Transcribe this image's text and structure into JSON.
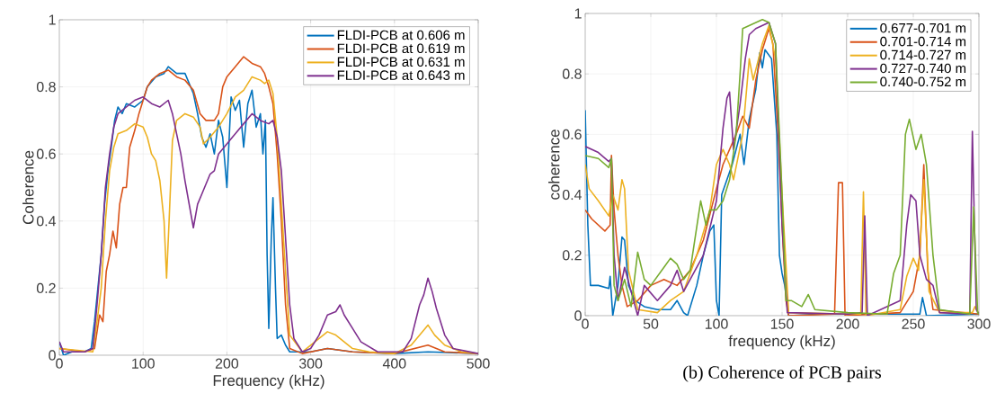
{
  "chart_data": [
    {
      "type": "line",
      "xlabel": "Frequency (kHz)",
      "ylabel": "Coherence",
      "xlim": [
        0,
        500
      ],
      "ylim": [
        0,
        1
      ],
      "xticks": [
        0,
        100,
        200,
        300,
        400,
        500
      ],
      "yticks": [
        0,
        0.2,
        0.4,
        0.6,
        0.8,
        1
      ],
      "grid": true,
      "legend": "top right",
      "series": [
        {
          "name": "FLDI-PCB at 0.606 m",
          "color": "#0072bd",
          "x": [
            0,
            5,
            15,
            30,
            38,
            42,
            46,
            50,
            54,
            58,
            62,
            66,
            70,
            75,
            80,
            90,
            100,
            105,
            115,
            125,
            130,
            140,
            150,
            160,
            165,
            170,
            175,
            180,
            185,
            190,
            195,
            200,
            205,
            210,
            215,
            220,
            225,
            230,
            235,
            240,
            243,
            246,
            248,
            250,
            253,
            255,
            258,
            260,
            265,
            270,
            275,
            300,
            320,
            350,
            400,
            440,
            500
          ],
          "values": [
            0.04,
            0,
            0.01,
            0.01,
            0.02,
            0.1,
            0.2,
            0.3,
            0.45,
            0.55,
            0.62,
            0.7,
            0.74,
            0.72,
            0.75,
            0.74,
            0.76,
            0.8,
            0.83,
            0.84,
            0.86,
            0.84,
            0.84,
            0.78,
            0.72,
            0.65,
            0.62,
            0.66,
            0.6,
            0.7,
            0.65,
            0.5,
            0.77,
            0.73,
            0.76,
            0.62,
            0.75,
            0.79,
            0.68,
            0.72,
            0.6,
            0.7,
            0.3,
            0.08,
            0.35,
            0.47,
            0.2,
            0.05,
            0.06,
            0.03,
            0.01,
            0.01,
            0.02,
            0.01,
            0.005,
            0.01,
            0.005
          ]
        },
        {
          "name": "FLDI-PCB at 0.619 m",
          "color": "#d95319",
          "x": [
            0,
            30,
            42,
            48,
            52,
            56,
            60,
            64,
            68,
            72,
            76,
            80,
            84,
            90,
            95,
            100,
            105,
            110,
            120,
            130,
            140,
            150,
            160,
            168,
            175,
            185,
            190,
            195,
            200,
            210,
            220,
            230,
            240,
            245,
            250,
            255,
            260,
            265,
            270,
            275,
            290,
            320,
            350,
            400,
            440,
            460,
            500
          ],
          "values": [
            0.02,
            0.01,
            0.02,
            0.12,
            0.1,
            0.25,
            0.3,
            0.37,
            0.32,
            0.45,
            0.5,
            0.5,
            0.62,
            0.67,
            0.72,
            0.76,
            0.8,
            0.82,
            0.84,
            0.85,
            0.83,
            0.82,
            0.79,
            0.72,
            0.7,
            0.7,
            0.72,
            0.8,
            0.83,
            0.86,
            0.89,
            0.87,
            0.86,
            0.84,
            0.8,
            0.75,
            0.6,
            0.4,
            0.15,
            0.02,
            0.005,
            0.02,
            0.01,
            0.005,
            0.03,
            0.01,
            0.005
          ]
        },
        {
          "name": "FLDI-PCB at 0.631 m",
          "color": "#edb120",
          "x": [
            0,
            40,
            45,
            50,
            55,
            60,
            65,
            70,
            80,
            90,
            100,
            105,
            110,
            115,
            120,
            125,
            128,
            131,
            135,
            140,
            150,
            160,
            168,
            172,
            180,
            190,
            195,
            200,
            210,
            220,
            230,
            240,
            245,
            250,
            255,
            260,
            265,
            270,
            275,
            290,
            310,
            320,
            330,
            340,
            350,
            370,
            400,
            420,
            430,
            440,
            448,
            460,
            480,
            500
          ],
          "values": [
            0.02,
            0.01,
            0.1,
            0.2,
            0.4,
            0.55,
            0.62,
            0.66,
            0.67,
            0.69,
            0.68,
            0.65,
            0.6,
            0.58,
            0.52,
            0.4,
            0.23,
            0.4,
            0.64,
            0.7,
            0.72,
            0.71,
            0.68,
            0.63,
            0.65,
            0.68,
            0.7,
            0.72,
            0.77,
            0.79,
            0.83,
            0.82,
            0.81,
            0.82,
            0.78,
            0.65,
            0.45,
            0.25,
            0.06,
            0.01,
            0.05,
            0.07,
            0.06,
            0.04,
            0.02,
            0.01,
            0.005,
            0.03,
            0.06,
            0.09,
            0.06,
            0.03,
            0.01,
            0.005
          ]
        },
        {
          "name": "FLDI-PCB at 0.643 m",
          "color": "#7e2f8e",
          "x": [
            0,
            5,
            30,
            40,
            45,
            50,
            55,
            60,
            65,
            70,
            80,
            90,
            100,
            110,
            120,
            130,
            135,
            140,
            145,
            150,
            155,
            160,
            165,
            170,
            180,
            185,
            190,
            200,
            210,
            220,
            230,
            240,
            250,
            255,
            260,
            265,
            270,
            275,
            280,
            290,
            300,
            310,
            320,
            330,
            335,
            340,
            350,
            360,
            380,
            410,
            420,
            430,
            435,
            440,
            445,
            450,
            460,
            470,
            500
          ],
          "values": [
            0.04,
            0.01,
            0.01,
            0.02,
            0.15,
            0.3,
            0.5,
            0.6,
            0.68,
            0.72,
            0.74,
            0.76,
            0.77,
            0.75,
            0.74,
            0.76,
            0.72,
            0.66,
            0.6,
            0.52,
            0.45,
            0.38,
            0.45,
            0.48,
            0.54,
            0.55,
            0.6,
            0.63,
            0.66,
            0.69,
            0.72,
            0.7,
            0.69,
            0.7,
            0.65,
            0.55,
            0.35,
            0.15,
            0.05,
            0.01,
            0.02,
            0.06,
            0.12,
            0.13,
            0.15,
            0.12,
            0.08,
            0.04,
            0.01,
            0.01,
            0.05,
            0.15,
            0.18,
            0.23,
            0.19,
            0.14,
            0.06,
            0.02,
            0.005
          ]
        }
      ]
    },
    {
      "type": "line",
      "xlabel": "frequency (kHz)",
      "ylabel": "coherence",
      "xlim": [
        0,
        300
      ],
      "ylim": [
        0,
        1
      ],
      "xticks": [
        0,
        50,
        100,
        150,
        200,
        250,
        300
      ],
      "yticks": [
        0,
        0.2,
        0.4,
        0.6,
        0.8,
        1
      ],
      "grid": true,
      "legend": "top right",
      "annotations": [
        "(b) Coherence of PCB pairs"
      ],
      "series": [
        {
          "name": "0.677-0.701 m",
          "color": "#0072bd",
          "x": [
            0,
            2,
            4,
            10,
            18,
            19,
            21,
            25,
            28,
            30,
            33,
            38,
            45,
            55,
            65,
            70,
            75,
            78,
            85,
            90,
            95,
            98,
            100,
            102,
            104,
            108,
            112,
            118,
            121,
            125,
            130,
            133,
            135,
            137,
            142,
            146,
            148,
            150,
            152,
            155,
            180,
            255,
            257,
            260,
            300
          ],
          "values": [
            0.68,
            0.3,
            0.1,
            0.1,
            0.09,
            0.13,
            0,
            0.1,
            0.26,
            0.25,
            0.1,
            0.05,
            0.03,
            0.02,
            0.02,
            0.05,
            0.01,
            0,
            0.1,
            0.2,
            0.28,
            0.3,
            0.05,
            0,
            0.4,
            0.45,
            0.5,
            0.6,
            0.5,
            0.65,
            0.75,
            0.87,
            0.82,
            0.88,
            0.85,
            0.6,
            0.2,
            0.14,
            0.1,
            0,
            0.005,
            0.005,
            0.06,
            0,
            0.005
          ]
        },
        {
          "name": "0.701-0.714 m",
          "color": "#d95319",
          "x": [
            0,
            5,
            15,
            19,
            20,
            22,
            25,
            28,
            32,
            40,
            50,
            60,
            70,
            80,
            90,
            100,
            105,
            110,
            115,
            120,
            125,
            130,
            135,
            140,
            143,
            147,
            150,
            153,
            155,
            190,
            193,
            196,
            198,
            240,
            250,
            255,
            258,
            261,
            265,
            300
          ],
          "values": [
            0.35,
            0.32,
            0.28,
            0.3,
            0.53,
            0.35,
            0.2,
            0.1,
            0.03,
            0.05,
            0.1,
            0.12,
            0.1,
            0.15,
            0.25,
            0.42,
            0.5,
            0.55,
            0.6,
            0.66,
            0.62,
            0.78,
            0.88,
            0.95,
            0.9,
            0.6,
            0.3,
            0.05,
            0,
            0.005,
            0.44,
            0.44,
            0,
            0.01,
            0.08,
            0.2,
            0.5,
            0.15,
            0.02,
            0.005
          ]
        },
        {
          "name": "0.714-0.727 m",
          "color": "#edb120",
          "x": [
            0,
            3,
            10,
            18,
            21,
            25,
            28,
            30,
            33,
            40,
            55,
            65,
            75,
            85,
            95,
            100,
            105,
            110,
            113,
            120,
            125,
            128,
            135,
            140,
            145,
            150,
            155,
            200,
            210,
            212,
            214,
            240,
            245,
            250,
            254,
            258,
            262,
            270,
            295,
            297,
            300
          ],
          "values": [
            0.5,
            0.42,
            0.38,
            0.33,
            0.4,
            0.35,
            0.45,
            0.42,
            0.15,
            0.02,
            0.01,
            0.05,
            0.08,
            0.2,
            0.35,
            0.5,
            0.55,
            0.5,
            0.45,
            0.6,
            0.85,
            0.78,
            0.9,
            0.96,
            0.85,
            0.4,
            0.01,
            0.005,
            0.005,
            0.41,
            0,
            0.02,
            0.13,
            0.19,
            0.15,
            0.45,
            0.08,
            0.01,
            0.01,
            0.03,
            0.005
          ]
        },
        {
          "name": "0.727-0.740 m",
          "color": "#7e2f8e",
          "x": [
            0,
            10,
            18,
            20,
            22,
            25,
            30,
            35,
            40,
            45,
            55,
            65,
            70,
            75,
            80,
            90,
            100,
            105,
            108,
            110,
            113,
            118,
            122,
            125,
            130,
            135,
            140,
            145,
            150,
            154,
            200,
            211,
            213,
            215,
            240,
            245,
            248,
            252,
            255,
            260,
            265,
            270,
            293,
            295,
            298,
            300
          ],
          "values": [
            0.56,
            0.54,
            0.51,
            0.52,
            0.2,
            0.05,
            0.16,
            0.08,
            0,
            0.1,
            0.05,
            0.1,
            0.15,
            0.08,
            0.12,
            0.2,
            0.38,
            0.62,
            0.72,
            0.74,
            0.55,
            0.7,
            0.85,
            0.93,
            0.95,
            0.96,
            0.97,
            0.9,
            0.3,
            0.01,
            0.005,
            0.01,
            0.33,
            0,
            0.05,
            0.3,
            0.4,
            0.38,
            0.2,
            0.12,
            0.1,
            0.01,
            0.005,
            0.61,
            0.02,
            0.005
          ]
        },
        {
          "name": "0.740-0.752 m",
          "color": "#77ac30",
          "x": [
            0,
            10,
            18,
            20,
            22,
            25,
            30,
            35,
            40,
            45,
            50,
            55,
            60,
            65,
            70,
            75,
            80,
            88,
            92,
            95,
            100,
            105,
            110,
            115,
            118,
            120,
            125,
            130,
            135,
            140,
            145,
            150,
            153,
            157,
            165,
            170,
            175,
            200,
            230,
            235,
            240,
            244,
            247,
            252,
            256,
            260,
            265,
            270,
            293,
            296,
            299,
            300
          ],
          "values": [
            0.53,
            0.52,
            0.49,
            0.52,
            0.1,
            0.05,
            0.12,
            0.03,
            0.21,
            0.12,
            0.1,
            0.13,
            0.16,
            0.19,
            0.17,
            0.12,
            0.15,
            0.38,
            0.3,
            0.35,
            0.35,
            0.38,
            0.45,
            0.6,
            0.8,
            0.95,
            0.96,
            0.97,
            0.98,
            0.97,
            0.9,
            0.4,
            0.05,
            0.05,
            0.03,
            0.07,
            0.02,
            0.01,
            0.005,
            0.14,
            0.2,
            0.6,
            0.65,
            0.55,
            0.6,
            0.5,
            0.2,
            0.02,
            0.005,
            0.36,
            0.01,
            0.005
          ]
        }
      ]
    }
  ]
}
